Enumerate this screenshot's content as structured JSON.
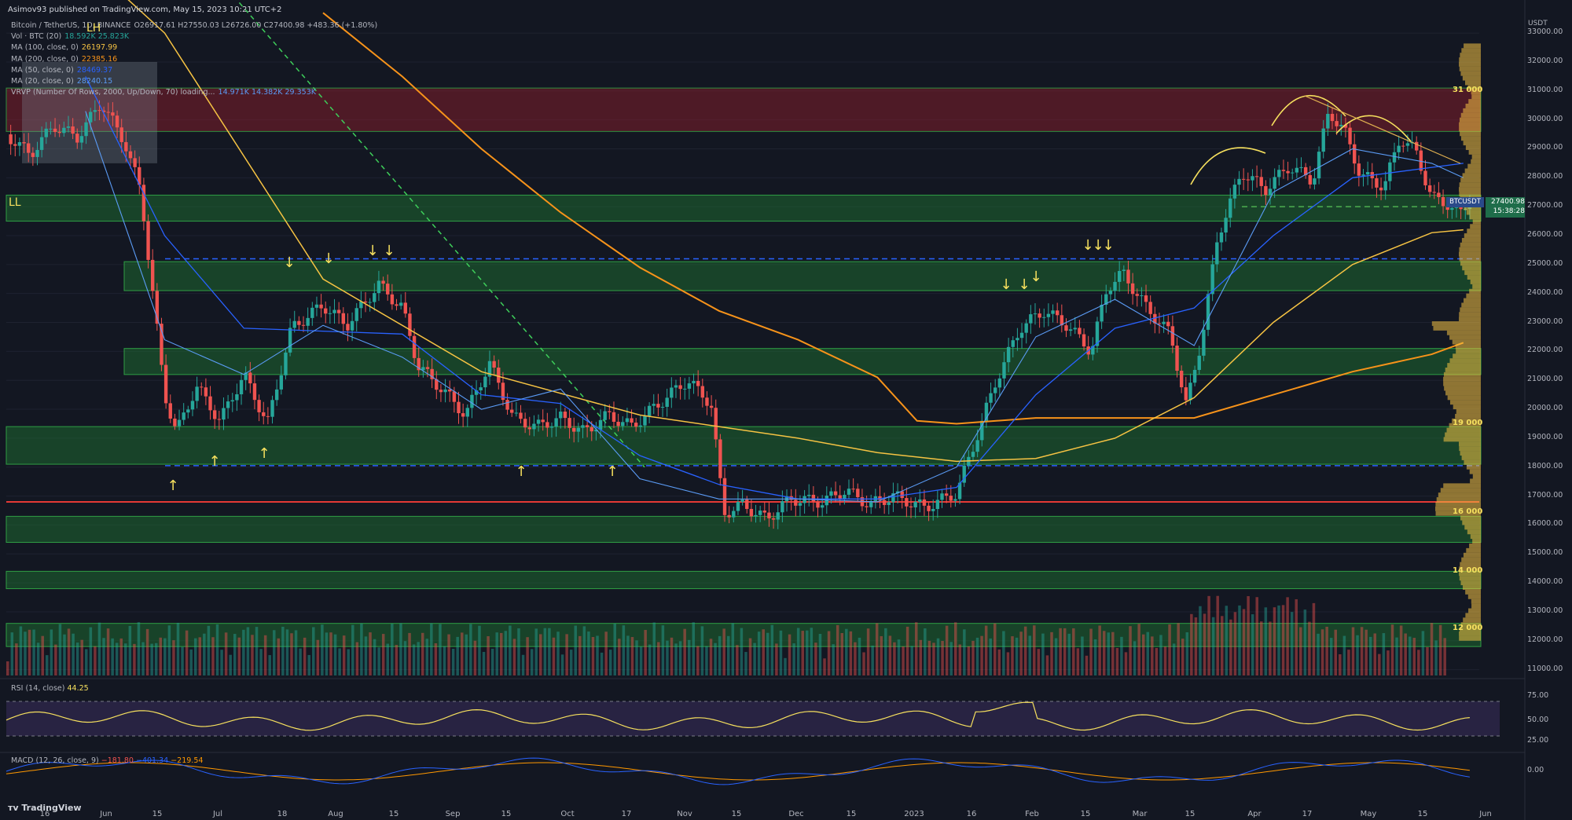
{
  "header": {
    "published": "Asimov93 published on TradingView.com, May 15, 2023 10:21 UTC+2"
  },
  "legend": [
    {
      "name": "Bitcoin / TetherUS, 1D, BINANCE",
      "value": "O26917.61 H27550.03 L26726.00 C27400.98 +483.36 (+1.80%)",
      "color": "#d1d4dc"
    },
    {
      "name": "Vol · BTC (20)",
      "value": "18.592K  25.823K",
      "color": "#26a69a"
    },
    {
      "name": "MA (100, close, 0)",
      "value": "26197.99",
      "color": "#f6c343"
    },
    {
      "name": "MA (200, close, 0)",
      "value": "22385.16",
      "color": "#f7931a"
    },
    {
      "name": "MA (50, close, 0)",
      "value": "28469.37",
      "color": "#2962ff"
    },
    {
      "name": "MA (20, close, 0)",
      "value": "28240.15",
      "color": "#5b9cf6"
    },
    {
      "name": "VRVP (Number Of Rows, 2000, Up/Down, 70) loading...",
      "value": "14.971K  14.382K  29.353K",
      "color": "#5b9cf6"
    }
  ],
  "symbol_badge": {
    "ticker": "BTCUSDT",
    "price": "27400.98",
    "countdown": "15:38:28"
  },
  "currency": "USDT",
  "brand": "TradingView",
  "annotations": {
    "ll_left": "LL",
    "lh_top": "LH"
  },
  "level_labels": [
    "31 000",
    "19 000",
    "16 000",
    "14 000",
    "12 000"
  ],
  "rsi": {
    "label": "RSI (14, close)",
    "value": "44.25",
    "ticks": [
      "75.00",
      "50.00",
      "25.00"
    ]
  },
  "macd": {
    "label": "MACD (12, 26, close, 9)",
    "values": [
      "−181.80",
      "−401.34",
      "−219.54"
    ],
    "tick": "0.00"
  },
  "colors": {
    "up": "#26a69a",
    "down": "#ef5350",
    "zone_green": "#1e7a32",
    "zone_red": "#7a1e2a",
    "annot": "#f6e05e"
  },
  "chart_data": {
    "type": "candlestick",
    "symbol": "BTCUSDT",
    "interval": "1D",
    "y_axis_ticks": [
      33000,
      32000,
      31000,
      30000,
      29000,
      28000,
      27000,
      26000,
      25000,
      24000,
      23000,
      22000,
      21000,
      20000,
      19000,
      18000,
      17000,
      16000,
      15000,
      14000,
      13000,
      12000,
      11000
    ],
    "y_tick_labels": [
      "33000.00",
      "32000.00",
      "31000.00",
      "30000.00",
      "29000.00",
      "28000.00",
      "27000.00",
      "26000.00",
      "25000.00",
      "24000.00",
      "23000.00",
      "22000.00",
      "21000.00",
      "20000.00",
      "19000.00",
      "18000.00",
      "17000.00",
      "16000.00",
      "15000.00",
      "14000.00",
      "13000.00",
      "12000.00",
      "11000.00"
    ],
    "x_tick_labels": [
      "16",
      "Jun",
      "15",
      "Jul",
      "18",
      "Aug",
      "15",
      "Sep",
      "15",
      "Oct",
      "17",
      "Nov",
      "15",
      "Dec",
      "15",
      "2023",
      "16",
      "Feb",
      "15",
      "Mar",
      "15",
      "Apr",
      "17",
      "May",
      "15",
      "Jun"
    ],
    "ylim": [
      10800,
      33600
    ],
    "green_zones": [
      [
        26500,
        27400
      ],
      [
        24100,
        25100
      ],
      [
        21200,
        22100
      ],
      [
        18100,
        19400
      ],
      [
        15400,
        16300
      ],
      [
        13800,
        14400
      ],
      [
        11800,
        12600
      ]
    ],
    "red_zones": [
      [
        29600,
        31100
      ]
    ],
    "support_line": 16800,
    "dashed_levels": [
      25200,
      18050
    ],
    "price_path": [
      [
        0,
        29500
      ],
      [
        30,
        28800
      ],
      [
        60,
        29800
      ],
      [
        90,
        29400
      ],
      [
        120,
        30600
      ],
      [
        150,
        29200
      ],
      [
        170,
        27500
      ],
      [
        185,
        24000
      ],
      [
        200,
        20500
      ],
      [
        215,
        19200
      ],
      [
        240,
        20800
      ],
      [
        270,
        19600
      ],
      [
        300,
        21200
      ],
      [
        330,
        19500
      ],
      [
        360,
        22800
      ],
      [
        400,
        23600
      ],
      [
        430,
        22900
      ],
      [
        470,
        24300
      ],
      [
        500,
        23500
      ],
      [
        520,
        21500
      ],
      [
        550,
        20700
      ],
      [
        580,
        19800
      ],
      [
        610,
        21600
      ],
      [
        640,
        19700
      ],
      [
        670,
        19400
      ],
      [
        700,
        19700
      ],
      [
        730,
        19200
      ],
      [
        760,
        19800
      ],
      [
        790,
        19400
      ],
      [
        820,
        20100
      ],
      [
        860,
        21000
      ],
      [
        890,
        20200
      ],
      [
        906,
        16400
      ],
      [
        930,
        16700
      ],
      [
        960,
        16200
      ],
      [
        990,
        16900
      ],
      [
        1030,
        16800
      ],
      [
        1060,
        17200
      ],
      [
        1090,
        16700
      ],
      [
        1120,
        17000
      ],
      [
        1160,
        16600
      ],
      [
        1200,
        17100
      ],
      [
        1230,
        19400
      ],
      [
        1250,
        21000
      ],
      [
        1280,
        22800
      ],
      [
        1310,
        23400
      ],
      [
        1340,
        22900
      ],
      [
        1370,
        22000
      ],
      [
        1390,
        24200
      ],
      [
        1410,
        24700
      ],
      [
        1440,
        23500
      ],
      [
        1470,
        22600
      ],
      [
        1490,
        20100
      ],
      [
        1510,
        22500
      ],
      [
        1530,
        26000
      ],
      [
        1560,
        28200
      ],
      [
        1590,
        27600
      ],
      [
        1620,
        28400
      ],
      [
        1650,
        27900
      ],
      [
        1670,
        30300
      ],
      [
        1690,
        29600
      ],
      [
        1710,
        28100
      ],
      [
        1740,
        27700
      ],
      [
        1760,
        29400
      ],
      [
        1780,
        28900
      ],
      [
        1800,
        27300
      ],
      [
        1820,
        27100
      ],
      [
        1835,
        26700
      ],
      [
        1850,
        27400
      ]
    ],
    "ma20": [
      [
        100,
        30300
      ],
      [
        200,
        22400
      ],
      [
        300,
        21200
      ],
      [
        400,
        22900
      ],
      [
        500,
        21800
      ],
      [
        600,
        20000
      ],
      [
        700,
        20700
      ],
      [
        800,
        17600
      ],
      [
        900,
        16900
      ],
      [
        1000,
        16900
      ],
      [
        1100,
        16800
      ],
      [
        1200,
        18000
      ],
      [
        1300,
        22500
      ],
      [
        1400,
        23800
      ],
      [
        1500,
        22200
      ],
      [
        1600,
        27500
      ],
      [
        1700,
        29000
      ],
      [
        1800,
        28500
      ],
      [
        1840,
        28000
      ]
    ],
    "ma50": [
      [
        100,
        31500
      ],
      [
        200,
        26000
      ],
      [
        300,
        22800
      ],
      [
        400,
        22700
      ],
      [
        500,
        22600
      ],
      [
        600,
        20500
      ],
      [
        700,
        20200
      ],
      [
        800,
        18400
      ],
      [
        900,
        17400
      ],
      [
        1000,
        16900
      ],
      [
        1100,
        16900
      ],
      [
        1200,
        17300
      ],
      [
        1300,
        20500
      ],
      [
        1400,
        22800
      ],
      [
        1500,
        23500
      ],
      [
        1600,
        26000
      ],
      [
        1700,
        28000
      ],
      [
        1840,
        28500
      ]
    ],
    "ma100": [
      [
        0,
        38000
      ],
      [
        200,
        33000
      ],
      [
        400,
        24500
      ],
      [
        600,
        21300
      ],
      [
        800,
        19800
      ],
      [
        1000,
        19000
      ],
      [
        1100,
        18500
      ],
      [
        1200,
        18200
      ],
      [
        1300,
        18300
      ],
      [
        1400,
        19000
      ],
      [
        1500,
        20400
      ],
      [
        1600,
        23000
      ],
      [
        1700,
        25000
      ],
      [
        1800,
        26100
      ],
      [
        1840,
        26200
      ]
    ],
    "ma200": [
      [
        400,
        33700
      ],
      [
        500,
        31500
      ],
      [
        600,
        29000
      ],
      [
        700,
        26800
      ],
      [
        800,
        24900
      ],
      [
        900,
        23400
      ],
      [
        1000,
        22400
      ],
      [
        1100,
        21100
      ],
      [
        1150,
        19600
      ],
      [
        1200,
        19500
      ],
      [
        1300,
        19700
      ],
      [
        1400,
        19700
      ],
      [
        1500,
        19700
      ],
      [
        1600,
        20500
      ],
      [
        1700,
        21300
      ],
      [
        1800,
        21900
      ],
      [
        1840,
        22300
      ]
    ]
  }
}
